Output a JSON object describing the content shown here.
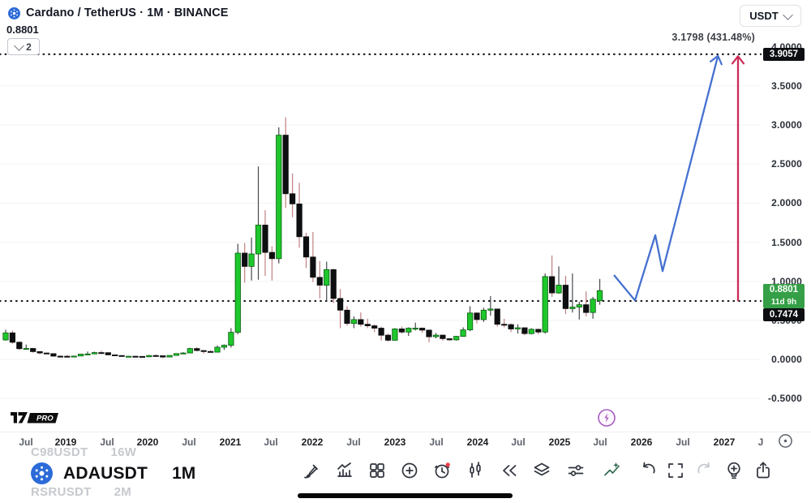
{
  "header": {
    "title": "Cardano / TetherUS · 1M · BINANCE",
    "price": "0.8801",
    "objects_count": "2",
    "currency_button": "USDT"
  },
  "annotation": {
    "text": "3.1798 (431.48%)"
  },
  "price_labels": {
    "upper": "3.9057",
    "current": "0.8801",
    "countdown": "11d 9h",
    "lower": "0.7474"
  },
  "watermark": {
    "pro": "PRO"
  },
  "watchlist": {
    "prev": {
      "symbol": "C98USDT",
      "timeframe": "16W"
    },
    "active": {
      "symbol": "ADAUSDT",
      "timeframe": "1M"
    },
    "next": {
      "symbol": "RSRUSDT",
      "timeframe": "2M"
    }
  },
  "toolbar": {
    "icons": [
      "draw",
      "chart",
      "grid",
      "add-circle",
      "alert",
      "candles",
      "rewind",
      "layers",
      "sliders",
      "magic-trend",
      "undo",
      "fullscreen",
      "redo",
      "idea-bulb",
      "share"
    ]
  },
  "colors": {
    "up_candle": "#1ec72b",
    "up_border": "#0a5c10",
    "up_wick": "#45484e",
    "down_candle": "#0e0f10",
    "down_wick": "#c08081",
    "grid": "#f1f2f5",
    "ref_line": "#16181d",
    "blue_arrow": "#4571d0",
    "red_arrow": "#cb2a56",
    "label_green": "#35a047",
    "label_black": "#0c0e12",
    "alert_badge": "#f23645",
    "lightning": "#a95cc0"
  },
  "chart_data": {
    "type": "candlestick",
    "symbol": "ADAUSDT",
    "exchange": "BINANCE",
    "interval": "1M",
    "start_month": "2018-04",
    "current_price": 0.8801,
    "ref_lines": [
      {
        "value": 3.9057
      },
      {
        "value": 0.7474
      }
    ],
    "gridline_values": [
      3.5,
      3.0,
      2.5,
      2.0,
      1.5,
      1.0,
      0.5,
      0.0,
      -0.5
    ],
    "y_ticks": [
      {
        "v": 4.0,
        "label": "4.0000"
      },
      {
        "v": 3.5,
        "label": "3.5000"
      },
      {
        "v": 3.0,
        "label": "3.0000"
      },
      {
        "v": 2.5,
        "label": "2.5000"
      },
      {
        "v": 2.0,
        "label": "2.0000"
      },
      {
        "v": 1.5,
        "label": "1.5000"
      },
      {
        "v": 1.0,
        "label": "1.0000"
      },
      {
        "v": 0.5,
        "label": "0.5000"
      },
      {
        "v": 0.0,
        "label": "0.0000"
      },
      {
        "v": -0.5,
        "label": "-0.5000"
      }
    ],
    "x_ticks": [
      {
        "label": "Jul",
        "x": 32,
        "major": false
      },
      {
        "label": "2019",
        "x": 81,
        "major": true
      },
      {
        "label": "Jul",
        "x": 132,
        "major": false
      },
      {
        "label": "2020",
        "x": 182,
        "major": true
      },
      {
        "label": "Jul",
        "x": 233,
        "major": false
      },
      {
        "label": "2021",
        "x": 284,
        "major": true
      },
      {
        "label": "Jul",
        "x": 334,
        "major": false
      },
      {
        "label": "2022",
        "x": 385,
        "major": true
      },
      {
        "label": "Jul",
        "x": 436,
        "major": false
      },
      {
        "label": "2023",
        "x": 487,
        "major": true
      },
      {
        "label": "Jul",
        "x": 538,
        "major": false
      },
      {
        "label": "2024",
        "x": 589,
        "major": true
      },
      {
        "label": "Jul",
        "x": 639,
        "major": false
      },
      {
        "label": "2025",
        "x": 690,
        "major": true
      },
      {
        "label": "Jul",
        "x": 740,
        "major": false
      },
      {
        "label": "2026",
        "x": 791,
        "major": true
      },
      {
        "label": "Jul",
        "x": 842,
        "major": false
      },
      {
        "label": "2027",
        "x": 893,
        "major": true
      },
      {
        "label": "J",
        "x": 938,
        "major": false
      }
    ],
    "candles": [
      [
        0.25,
        0.38,
        0.24,
        0.34
      ],
      [
        0.34,
        0.37,
        0.2,
        0.22
      ],
      [
        0.22,
        0.23,
        0.12,
        0.137
      ],
      [
        0.137,
        0.19,
        0.125,
        0.14
      ],
      [
        0.14,
        0.148,
        0.085,
        0.1
      ],
      [
        0.1,
        0.105,
        0.065,
        0.082
      ],
      [
        0.082,
        0.085,
        0.066,
        0.074
      ],
      [
        0.074,
        0.078,
        0.036,
        0.042
      ],
      [
        0.042,
        0.053,
        0.027,
        0.041
      ],
      [
        0.041,
        0.055,
        0.035,
        0.037
      ],
      [
        0.037,
        0.047,
        0.035,
        0.043
      ],
      [
        0.043,
        0.071,
        0.041,
        0.067
      ],
      [
        0.067,
        0.1,
        0.061,
        0.07
      ],
      [
        0.07,
        0.099,
        0.065,
        0.087
      ],
      [
        0.087,
        0.11,
        0.075,
        0.086
      ],
      [
        0.086,
        0.088,
        0.052,
        0.058
      ],
      [
        0.058,
        0.06,
        0.043,
        0.05
      ],
      [
        0.05,
        0.052,
        0.037,
        0.04
      ],
      [
        0.04,
        0.045,
        0.036,
        0.041
      ],
      [
        0.041,
        0.046,
        0.036,
        0.038
      ],
      [
        0.038,
        0.039,
        0.03,
        0.033
      ],
      [
        0.033,
        0.056,
        0.032,
        0.05
      ],
      [
        0.05,
        0.064,
        0.044,
        0.047
      ],
      [
        0.047,
        0.049,
        0.017,
        0.03
      ],
      [
        0.03,
        0.053,
        0.029,
        0.051
      ],
      [
        0.051,
        0.078,
        0.047,
        0.075
      ],
      [
        0.075,
        0.092,
        0.072,
        0.082
      ],
      [
        0.082,
        0.148,
        0.079,
        0.139
      ],
      [
        0.139,
        0.155,
        0.105,
        0.113
      ],
      [
        0.113,
        0.118,
        0.076,
        0.102
      ],
      [
        0.102,
        0.115,
        0.089,
        0.093
      ],
      [
        0.093,
        0.178,
        0.088,
        0.156
      ],
      [
        0.156,
        0.192,
        0.12,
        0.181
      ],
      [
        0.181,
        0.4,
        0.152,
        0.347
      ],
      [
        0.347,
        1.48,
        0.32,
        1.36
      ],
      [
        1.36,
        1.49,
        0.98,
        1.19
      ],
      [
        1.19,
        1.56,
        1.01,
        1.35
      ],
      [
        1.35,
        2.47,
        1.02,
        1.72
      ],
      [
        1.72,
        1.91,
        1.07,
        1.37
      ],
      [
        1.37,
        1.45,
        1.01,
        1.29
      ],
      [
        1.29,
        2.97,
        1.23,
        2.87
      ],
      [
        2.87,
        3.1,
        1.94,
        2.12
      ],
      [
        2.12,
        2.38,
        1.82,
        1.99
      ],
      [
        1.99,
        2.26,
        1.43,
        1.57
      ],
      [
        1.57,
        1.62,
        1.17,
        1.31
      ],
      [
        1.31,
        1.63,
        0.99,
        1.05
      ],
      [
        1.05,
        1.26,
        0.78,
        0.95
      ],
      [
        0.95,
        1.25,
        0.75,
        1.15
      ],
      [
        1.15,
        1.16,
        0.72,
        0.78
      ],
      [
        0.78,
        0.9,
        0.4,
        0.63
      ],
      [
        0.63,
        0.68,
        0.43,
        0.46
      ],
      [
        0.46,
        0.55,
        0.4,
        0.51
      ],
      [
        0.51,
        0.6,
        0.42,
        0.45
      ],
      [
        0.45,
        0.52,
        0.4,
        0.43
      ],
      [
        0.43,
        0.45,
        0.35,
        0.4
      ],
      [
        0.4,
        0.42,
        0.24,
        0.31
      ],
      [
        0.31,
        0.33,
        0.23,
        0.245
      ],
      [
        0.245,
        0.4,
        0.24,
        0.39
      ],
      [
        0.39,
        0.42,
        0.33,
        0.35
      ],
      [
        0.35,
        0.41,
        0.3,
        0.4
      ],
      [
        0.4,
        0.47,
        0.37,
        0.4
      ],
      [
        0.4,
        0.41,
        0.34,
        0.375
      ],
      [
        0.375,
        0.38,
        0.22,
        0.29
      ],
      [
        0.29,
        0.34,
        0.27,
        0.31
      ],
      [
        0.31,
        0.32,
        0.24,
        0.265
      ],
      [
        0.265,
        0.27,
        0.24,
        0.25
      ],
      [
        0.25,
        0.3,
        0.24,
        0.295
      ],
      [
        0.295,
        0.41,
        0.29,
        0.378
      ],
      [
        0.378,
        0.68,
        0.36,
        0.594
      ],
      [
        0.594,
        0.6,
        0.46,
        0.51
      ],
      [
        0.51,
        0.66,
        0.48,
        0.63
      ],
      [
        0.63,
        0.81,
        0.56,
        0.645
      ],
      [
        0.645,
        0.65,
        0.42,
        0.45
      ],
      [
        0.45,
        0.52,
        0.41,
        0.446
      ],
      [
        0.446,
        0.46,
        0.35,
        0.39
      ],
      [
        0.39,
        0.45,
        0.33,
        0.405
      ],
      [
        0.405,
        0.41,
        0.31,
        0.33
      ],
      [
        0.33,
        0.4,
        0.32,
        0.385
      ],
      [
        0.385,
        0.39,
        0.32,
        0.35
      ],
      [
        0.35,
        1.1,
        0.33,
        1.06
      ],
      [
        1.06,
        1.33,
        0.8,
        0.85
      ],
      [
        0.85,
        1.19,
        0.84,
        0.95
      ],
      [
        0.95,
        1.07,
        0.58,
        0.65
      ],
      [
        0.65,
        1.1,
        0.6,
        0.67
      ],
      [
        0.67,
        0.74,
        0.51,
        0.7
      ],
      [
        0.7,
        0.87,
        0.55,
        0.6
      ],
      [
        0.6,
        0.8,
        0.52,
        0.77
      ],
      [
        0.75,
        1.03,
        0.7,
        0.8801
      ]
    ],
    "arrows": {
      "blue_zigzag": {
        "points_x_value": [
          [
            757,
            1.08
          ],
          [
            783,
            0.755
          ],
          [
            808,
            1.59
          ],
          [
            817,
            1.13
          ],
          [
            885,
            3.875
          ]
        ]
      },
      "red_vertical": {
        "x": 910,
        "from_value": 0.748,
        "to_value": 3.87
      }
    },
    "scale": {
      "y0": 443,
      "ppu": 96.3,
      "x0": 7,
      "dx": 8.42,
      "plot_right": 938
    }
  }
}
